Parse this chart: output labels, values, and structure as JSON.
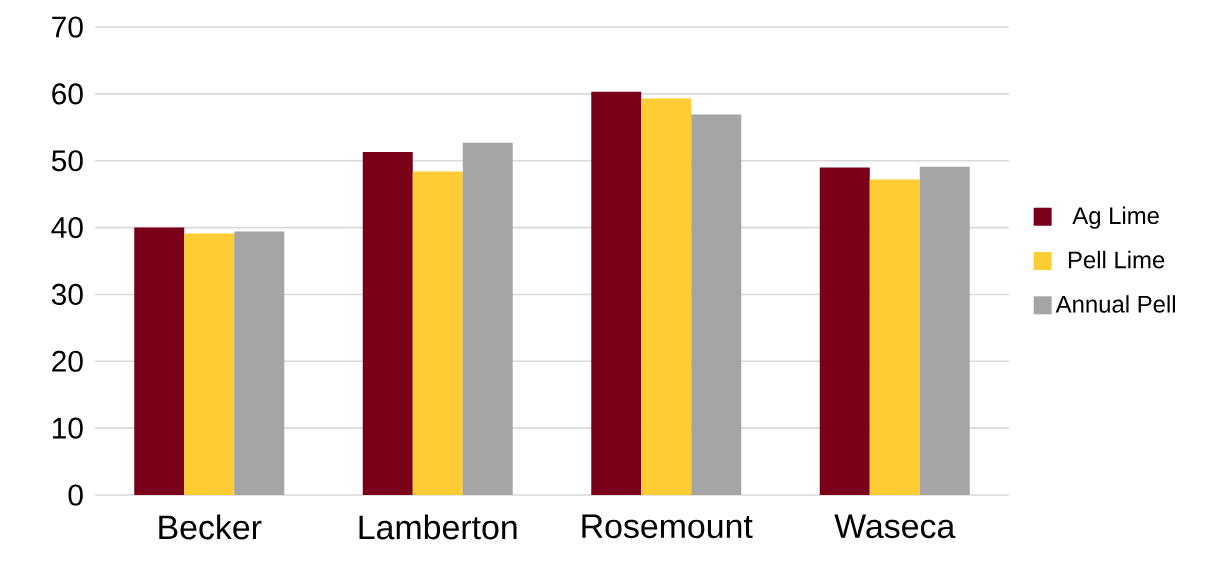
{
  "chart_data": {
    "type": "bar",
    "categories": [
      "Becker",
      "Lamberton",
      "Rosemount",
      "Waseca"
    ],
    "series": [
      {
        "name": "Ag Lime",
        "color": "#7a0019",
        "values": [
          40.0,
          51.3,
          60.3,
          49.0
        ]
      },
      {
        "name": "Pell Lime",
        "color": "#ffcc33",
        "values": [
          39.1,
          48.4,
          59.3,
          47.2
        ]
      },
      {
        "name": "Annual Pell",
        "color": "#a5a5a5",
        "values": [
          39.4,
          52.7,
          56.9,
          49.1
        ]
      }
    ],
    "ylim": [
      0,
      70
    ],
    "yticks": [
      0,
      10,
      20,
      30,
      40,
      50,
      60,
      70
    ],
    "grid": "y",
    "legend": "right"
  }
}
